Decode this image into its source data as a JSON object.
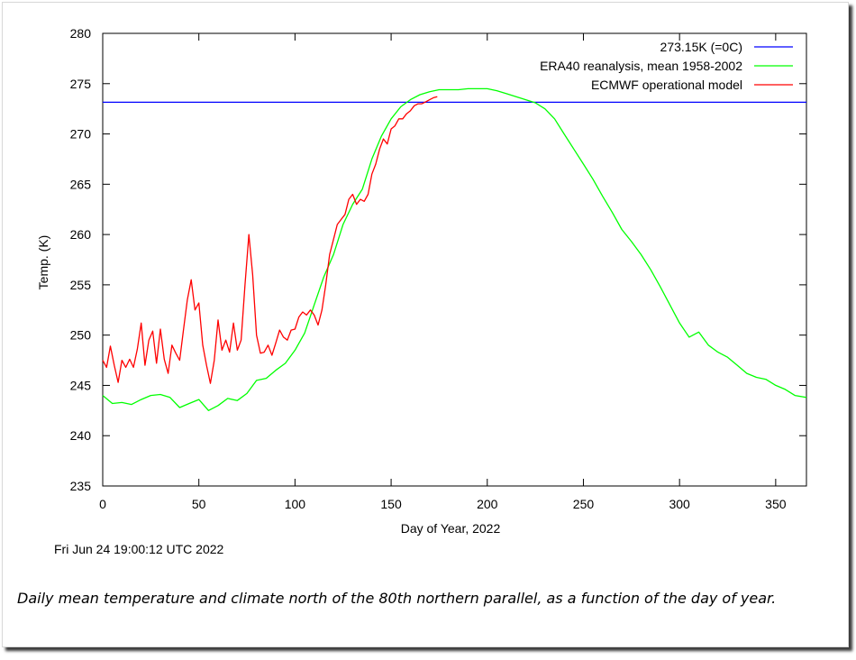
{
  "chart_data": {
    "type": "line",
    "xlabel": "Day of Year, 2022",
    "ylabel": "Temp. (K)",
    "xlim": [
      0,
      366
    ],
    "ylim": [
      235,
      280
    ],
    "xticks": [
      0,
      50,
      100,
      150,
      200,
      250,
      300,
      350
    ],
    "yticks": [
      235,
      240,
      245,
      250,
      255,
      260,
      265,
      270,
      275,
      280
    ],
    "grid": false,
    "legend_position": "top-right",
    "series": [
      {
        "name": "273.15K (=0C)",
        "color": "#0000ff",
        "x": [
          0,
          366
        ],
        "y": [
          273.15,
          273.15
        ]
      },
      {
        "name": "ERA40 reanalysis, mean 1958-2002",
        "color": "#00ff00",
        "x": [
          0,
          5,
          10,
          15,
          20,
          25,
          30,
          35,
          40,
          45,
          50,
          55,
          60,
          65,
          70,
          75,
          80,
          85,
          90,
          95,
          100,
          105,
          110,
          115,
          120,
          125,
          130,
          135,
          140,
          145,
          150,
          155,
          160,
          165,
          170,
          175,
          180,
          185,
          190,
          195,
          200,
          205,
          210,
          215,
          220,
          225,
          230,
          235,
          240,
          245,
          250,
          255,
          260,
          265,
          270,
          275,
          280,
          285,
          290,
          295,
          300,
          305,
          310,
          315,
          320,
          325,
          330,
          335,
          340,
          345,
          350,
          355,
          360,
          366
        ],
        "y": [
          244.0,
          243.2,
          243.3,
          243.1,
          243.6,
          244.0,
          244.1,
          243.8,
          242.8,
          243.2,
          243.6,
          242.5,
          243.0,
          243.7,
          243.5,
          244.2,
          245.5,
          245.7,
          246.5,
          247.2,
          248.5,
          250.2,
          253.0,
          255.8,
          258.0,
          261.0,
          263.0,
          264.5,
          267.5,
          269.8,
          271.5,
          272.7,
          273.4,
          273.9,
          274.2,
          274.4,
          274.4,
          274.4,
          274.5,
          274.5,
          274.5,
          274.3,
          274.0,
          273.7,
          273.4,
          273.1,
          272.5,
          271.5,
          270.0,
          268.5,
          267.0,
          265.5,
          263.8,
          262.2,
          260.5,
          259.3,
          258.0,
          256.5,
          254.8,
          253.0,
          251.2,
          249.8,
          250.3,
          249.0,
          248.3,
          247.8,
          247.0,
          246.2,
          245.8,
          245.6,
          245.0,
          244.6,
          244.0,
          243.8
        ]
      },
      {
        "name": "ECMWF operational model",
        "color": "#ff0000",
        "x": [
          0,
          2,
          4,
          6,
          8,
          10,
          12,
          14,
          16,
          18,
          20,
          22,
          24,
          26,
          28,
          30,
          32,
          34,
          36,
          38,
          40,
          42,
          44,
          46,
          48,
          50,
          52,
          54,
          56,
          58,
          60,
          62,
          64,
          66,
          68,
          70,
          72,
          74,
          76,
          78,
          80,
          82,
          84,
          86,
          88,
          90,
          92,
          94,
          96,
          98,
          100,
          102,
          104,
          106,
          108,
          110,
          112,
          114,
          116,
          118,
          120,
          122,
          124,
          126,
          128,
          130,
          132,
          134,
          136,
          138,
          140,
          142,
          144,
          146,
          148,
          150,
          152,
          154,
          156,
          158,
          160,
          162,
          164,
          166,
          168,
          170,
          172,
          174
        ],
        "y": [
          247.5,
          246.8,
          248.9,
          247.0,
          245.3,
          247.5,
          246.8,
          247.6,
          246.8,
          248.6,
          251.2,
          247.0,
          249.5,
          250.4,
          247.2,
          250.6,
          247.6,
          246.2,
          249.0,
          248.2,
          247.5,
          250.5,
          253.5,
          255.5,
          252.5,
          253.2,
          249.0,
          247.0,
          245.2,
          247.5,
          251.5,
          248.5,
          249.5,
          248.3,
          251.2,
          248.5,
          249.5,
          255.0,
          260.0,
          256.0,
          250.0,
          248.2,
          248.3,
          249.0,
          248.0,
          249.2,
          250.5,
          249.8,
          249.5,
          250.5,
          250.6,
          251.8,
          252.3,
          252.0,
          252.5,
          252.0,
          251.0,
          252.5,
          255.0,
          258.0,
          259.5,
          261.0,
          261.5,
          262.0,
          263.5,
          264.0,
          263.0,
          263.5,
          263.3,
          264.0,
          266.0,
          267.0,
          268.5,
          269.5,
          269.0,
          270.5,
          270.8,
          271.5,
          271.5,
          272.0,
          272.3,
          272.8,
          273.0,
          273.0,
          273.2,
          273.4,
          273.6,
          273.7
        ]
      }
    ]
  },
  "timestamp": "Fri Jun 24 19:00:12 UTC 2022",
  "caption": "Daily mean temperature and climate north of the 80th northern parallel, as a function of the day of year."
}
